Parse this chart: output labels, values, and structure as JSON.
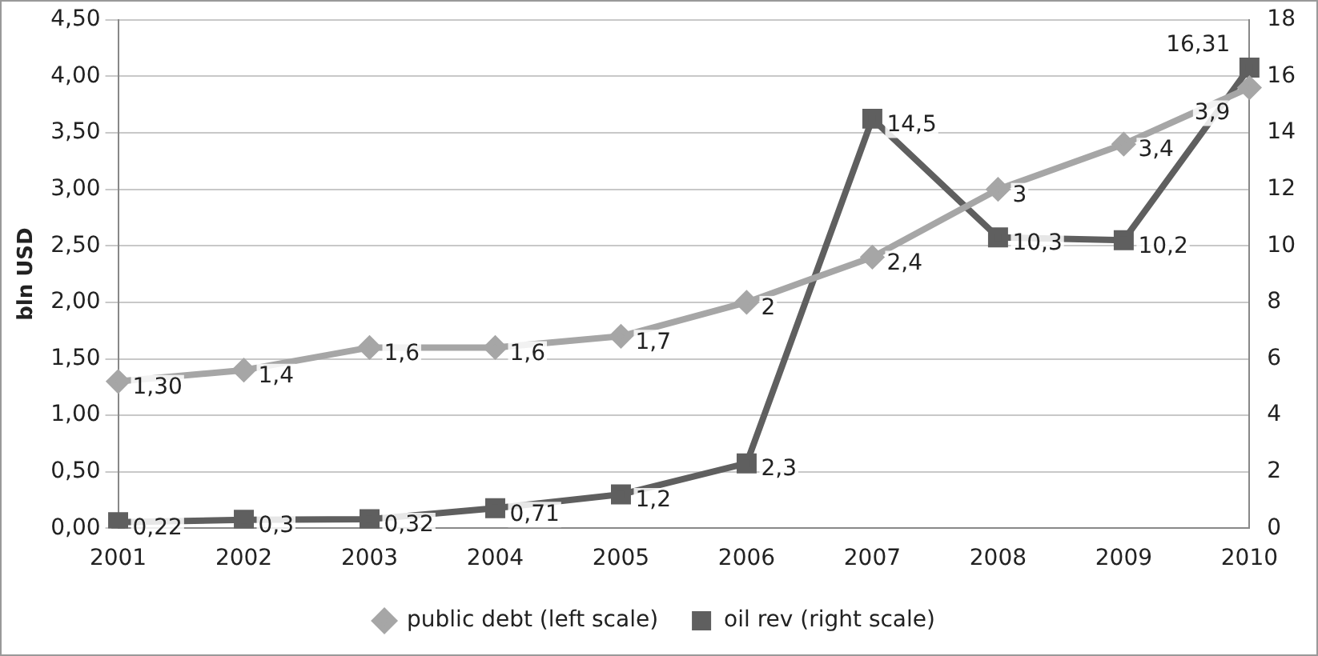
{
  "chart_data": {
    "type": "line",
    "ylabel": "bln USD",
    "categories": [
      "2001",
      "2002",
      "2003",
      "2004",
      "2005",
      "2006",
      "2007",
      "2008",
      "2009",
      "2010"
    ],
    "series": [
      {
        "name": "public debt (left scale)",
        "color": "#a6a6a6",
        "marker": "diamond",
        "values": [
          1.3,
          1.4,
          1.6,
          1.6,
          1.7,
          2,
          2.4,
          3,
          3.4,
          3.9
        ],
        "value_labels": [
          "1,30",
          "1,4",
          "1,6",
          "1,6",
          "1,7",
          "2",
          "2,4",
          "3",
          "3,4",
          "3,9"
        ]
      },
      {
        "name": "oil rev (right scale)",
        "color": "#5f5f5f",
        "marker": "square",
        "axis": "y2",
        "values": [
          0.22,
          0.3,
          0.32,
          0.71,
          1.2,
          2.3,
          14.5,
          10.3,
          10.2,
          16.31
        ],
        "value_labels": [
          "0,22",
          "0,3",
          "0,32",
          "0,71",
          "1,2",
          "2,3",
          "14,5",
          "10,3",
          "10,2",
          "16,31"
        ]
      }
    ],
    "ylim": [
      0,
      4.5
    ],
    "yticks": [
      {
        "value": 0,
        "label": "0,00"
      },
      {
        "value": 0.5,
        "label": "0,50"
      },
      {
        "value": 1,
        "label": "1,00"
      },
      {
        "value": 1.5,
        "label": "1,50"
      },
      {
        "value": 2,
        "label": "2,00"
      },
      {
        "value": 2.5,
        "label": "2,50"
      },
      {
        "value": 3,
        "label": "3,00"
      },
      {
        "value": 3.5,
        "label": "3,50"
      },
      {
        "value": 4,
        "label": "4,00"
      },
      {
        "value": 4.5,
        "label": "4,50"
      }
    ],
    "y2lim": [
      0,
      18
    ],
    "y2ticks": [
      0,
      2,
      4,
      6,
      8,
      10,
      12,
      14,
      16,
      18
    ],
    "grid": "y",
    "legend": "bottom"
  }
}
